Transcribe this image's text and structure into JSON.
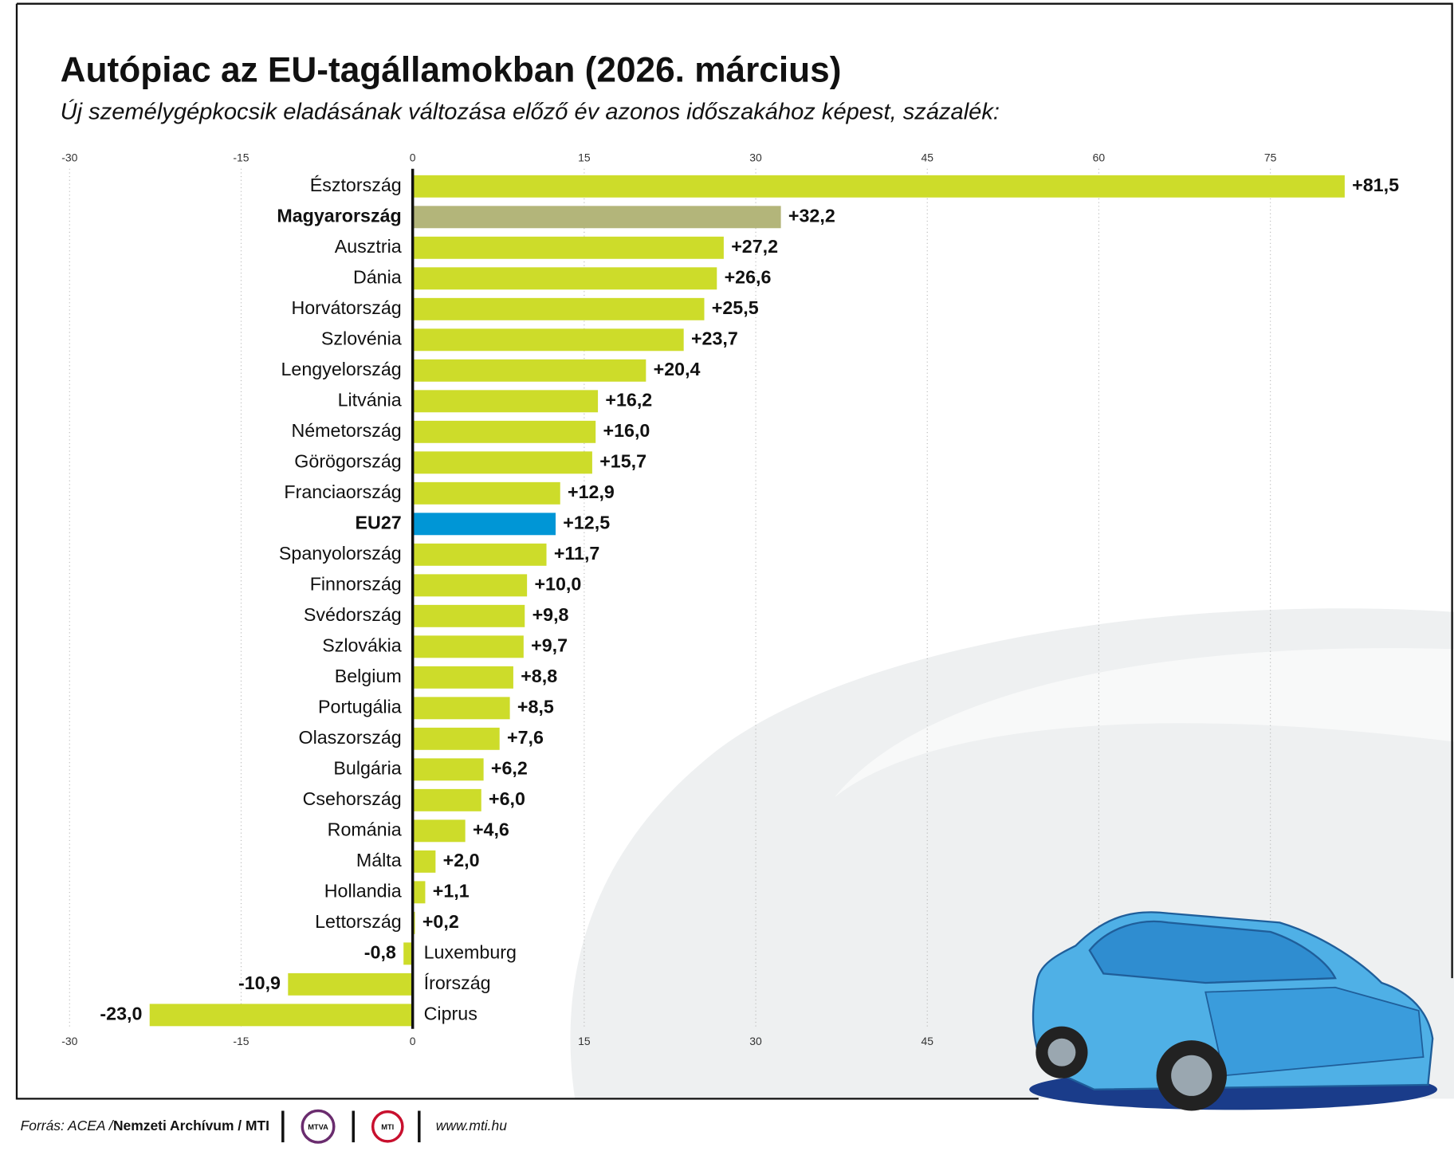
{
  "chart_data": {
    "type": "hbar",
    "title": "Autópiac az EU-tagállamokban (2026. március)",
    "subtitle": "Új személygépkocsik eladásának változása előző év azonos időszakához képest, százalék:",
    "categories": [
      "Észtország",
      "Magyarország",
      "Ausztria",
      "Dánia",
      "Horvátország",
      "Szlovénia",
      "Lengyelország",
      "Litvánia",
      "Németország",
      "Görögország",
      "Franciaország",
      "EU27",
      "Spanyolország",
      "Finnország",
      "Svédország",
      "Szlovákia",
      "Belgium",
      "Portugália",
      "Olaszország",
      "Bulgária",
      "Csehország",
      "Románia",
      "Málta",
      "Hollandia",
      "Lettország",
      "Luxemburg",
      "Írország",
      "Ciprus"
    ],
    "values": [
      81.5,
      32.2,
      27.2,
      26.6,
      25.5,
      23.7,
      20.4,
      16.2,
      16.0,
      15.7,
      12.9,
      12.5,
      11.7,
      10.0,
      9.8,
      9.7,
      8.8,
      8.5,
      7.6,
      6.2,
      6.0,
      4.6,
      2.0,
      1.1,
      0.2,
      -0.8,
      -10.9,
      -23.0
    ],
    "value_labels": [
      "+81,5",
      "+32,2",
      "+27,2",
      "+26,6",
      "+25,5",
      "+23,7",
      "+20,4",
      "+16,2",
      "+16,0",
      "+15,7",
      "+12,9",
      "+12,5",
      "+11,7",
      "+10,0",
      "+9,8",
      "+9,7",
      "+8,8",
      "+8,5",
      "+7,6",
      "+6,2",
      "+6,0",
      "+4,6",
      "+2,0",
      "+1,1",
      "+0,2",
      "-0,8",
      "-10,9",
      "-23,0"
    ],
    "color": "#cddc2a",
    "colors": [
      "#cddc2a",
      "#b3b57a",
      "#cddc2a",
      "#cddc2a",
      "#cddc2a",
      "#cddc2a",
      "#cddc2a",
      "#cddc2a",
      "#cddc2a",
      "#cddc2a",
      "#cddc2a",
      "#0096d6",
      "#cddc2a",
      "#cddc2a",
      "#cddc2a",
      "#cddc2a",
      "#cddc2a",
      "#cddc2a",
      "#cddc2a",
      "#cddc2a",
      "#cddc2a",
      "#cddc2a",
      "#cddc2a",
      "#cddc2a",
      "#cddc2a",
      "#cddc2a",
      "#cddc2a",
      "#cddc2a"
    ],
    "xlim": [
      -30,
      90
    ],
    "xticks": [
      -30,
      -15,
      0,
      15,
      30,
      45,
      60,
      75
    ],
    "grid": true
  },
  "footer": {
    "source_prefix": "Forrás: ACEA /",
    "source_bold": "Nemzeti Archívum / MTI",
    "logo1": "MTVA",
    "logo2": "MTI",
    "url": "www.mti.hu"
  }
}
